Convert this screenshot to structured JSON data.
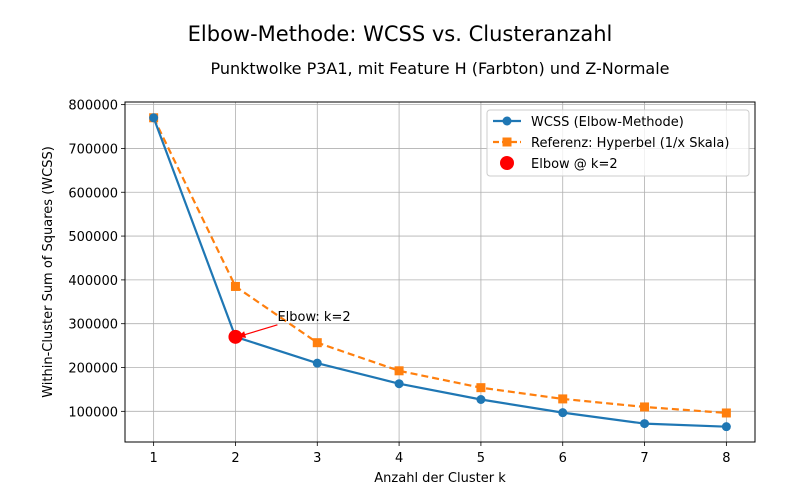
{
  "chart_data": {
    "type": "line",
    "suptitle": "Elbow-Methode: WCSS vs. Clusteranzahl",
    "title": "Punktwolke P3A1, mit Feature H (Farbton) und Z-Normale",
    "xlabel": "Anzahl der Cluster k",
    "ylabel": "Within-Cluster Sum of Squares (WCSS)",
    "x": [
      1,
      2,
      3,
      4,
      5,
      6,
      7,
      8
    ],
    "xticks": [
      "1",
      "2",
      "3",
      "4",
      "5",
      "6",
      "7",
      "8"
    ],
    "yticks": [
      "100000",
      "200000",
      "300000",
      "400000",
      "500000",
      "600000",
      "700000",
      "800000"
    ],
    "ytick_values": [
      100000,
      200000,
      300000,
      400000,
      500000,
      600000,
      700000,
      800000
    ],
    "xlim": [
      0.65,
      8.35
    ],
    "ylim": [
      30000,
      806000
    ],
    "grid": true,
    "legend_position": "top-right",
    "series": [
      {
        "name": "WCSS (Elbow-Methode)",
        "values": [
          770000,
          270000,
          210000,
          163000,
          127000,
          97000,
          72000,
          65000
        ],
        "color": "#1f77b4",
        "style": "solid",
        "marker": "circle"
      },
      {
        "name": "Referenz: Hyperbel (1/x Skala)",
        "values": [
          770000,
          385000,
          256667,
          192500,
          154000,
          128333,
          110000,
          96250
        ],
        "color": "#ff7f0e",
        "style": "dashed",
        "marker": "square"
      }
    ],
    "elbow": {
      "name": "Elbow @ k=2",
      "x": 2,
      "y": 270000,
      "color": "#ff0000",
      "annotation": "Elbow: k=2"
    }
  }
}
